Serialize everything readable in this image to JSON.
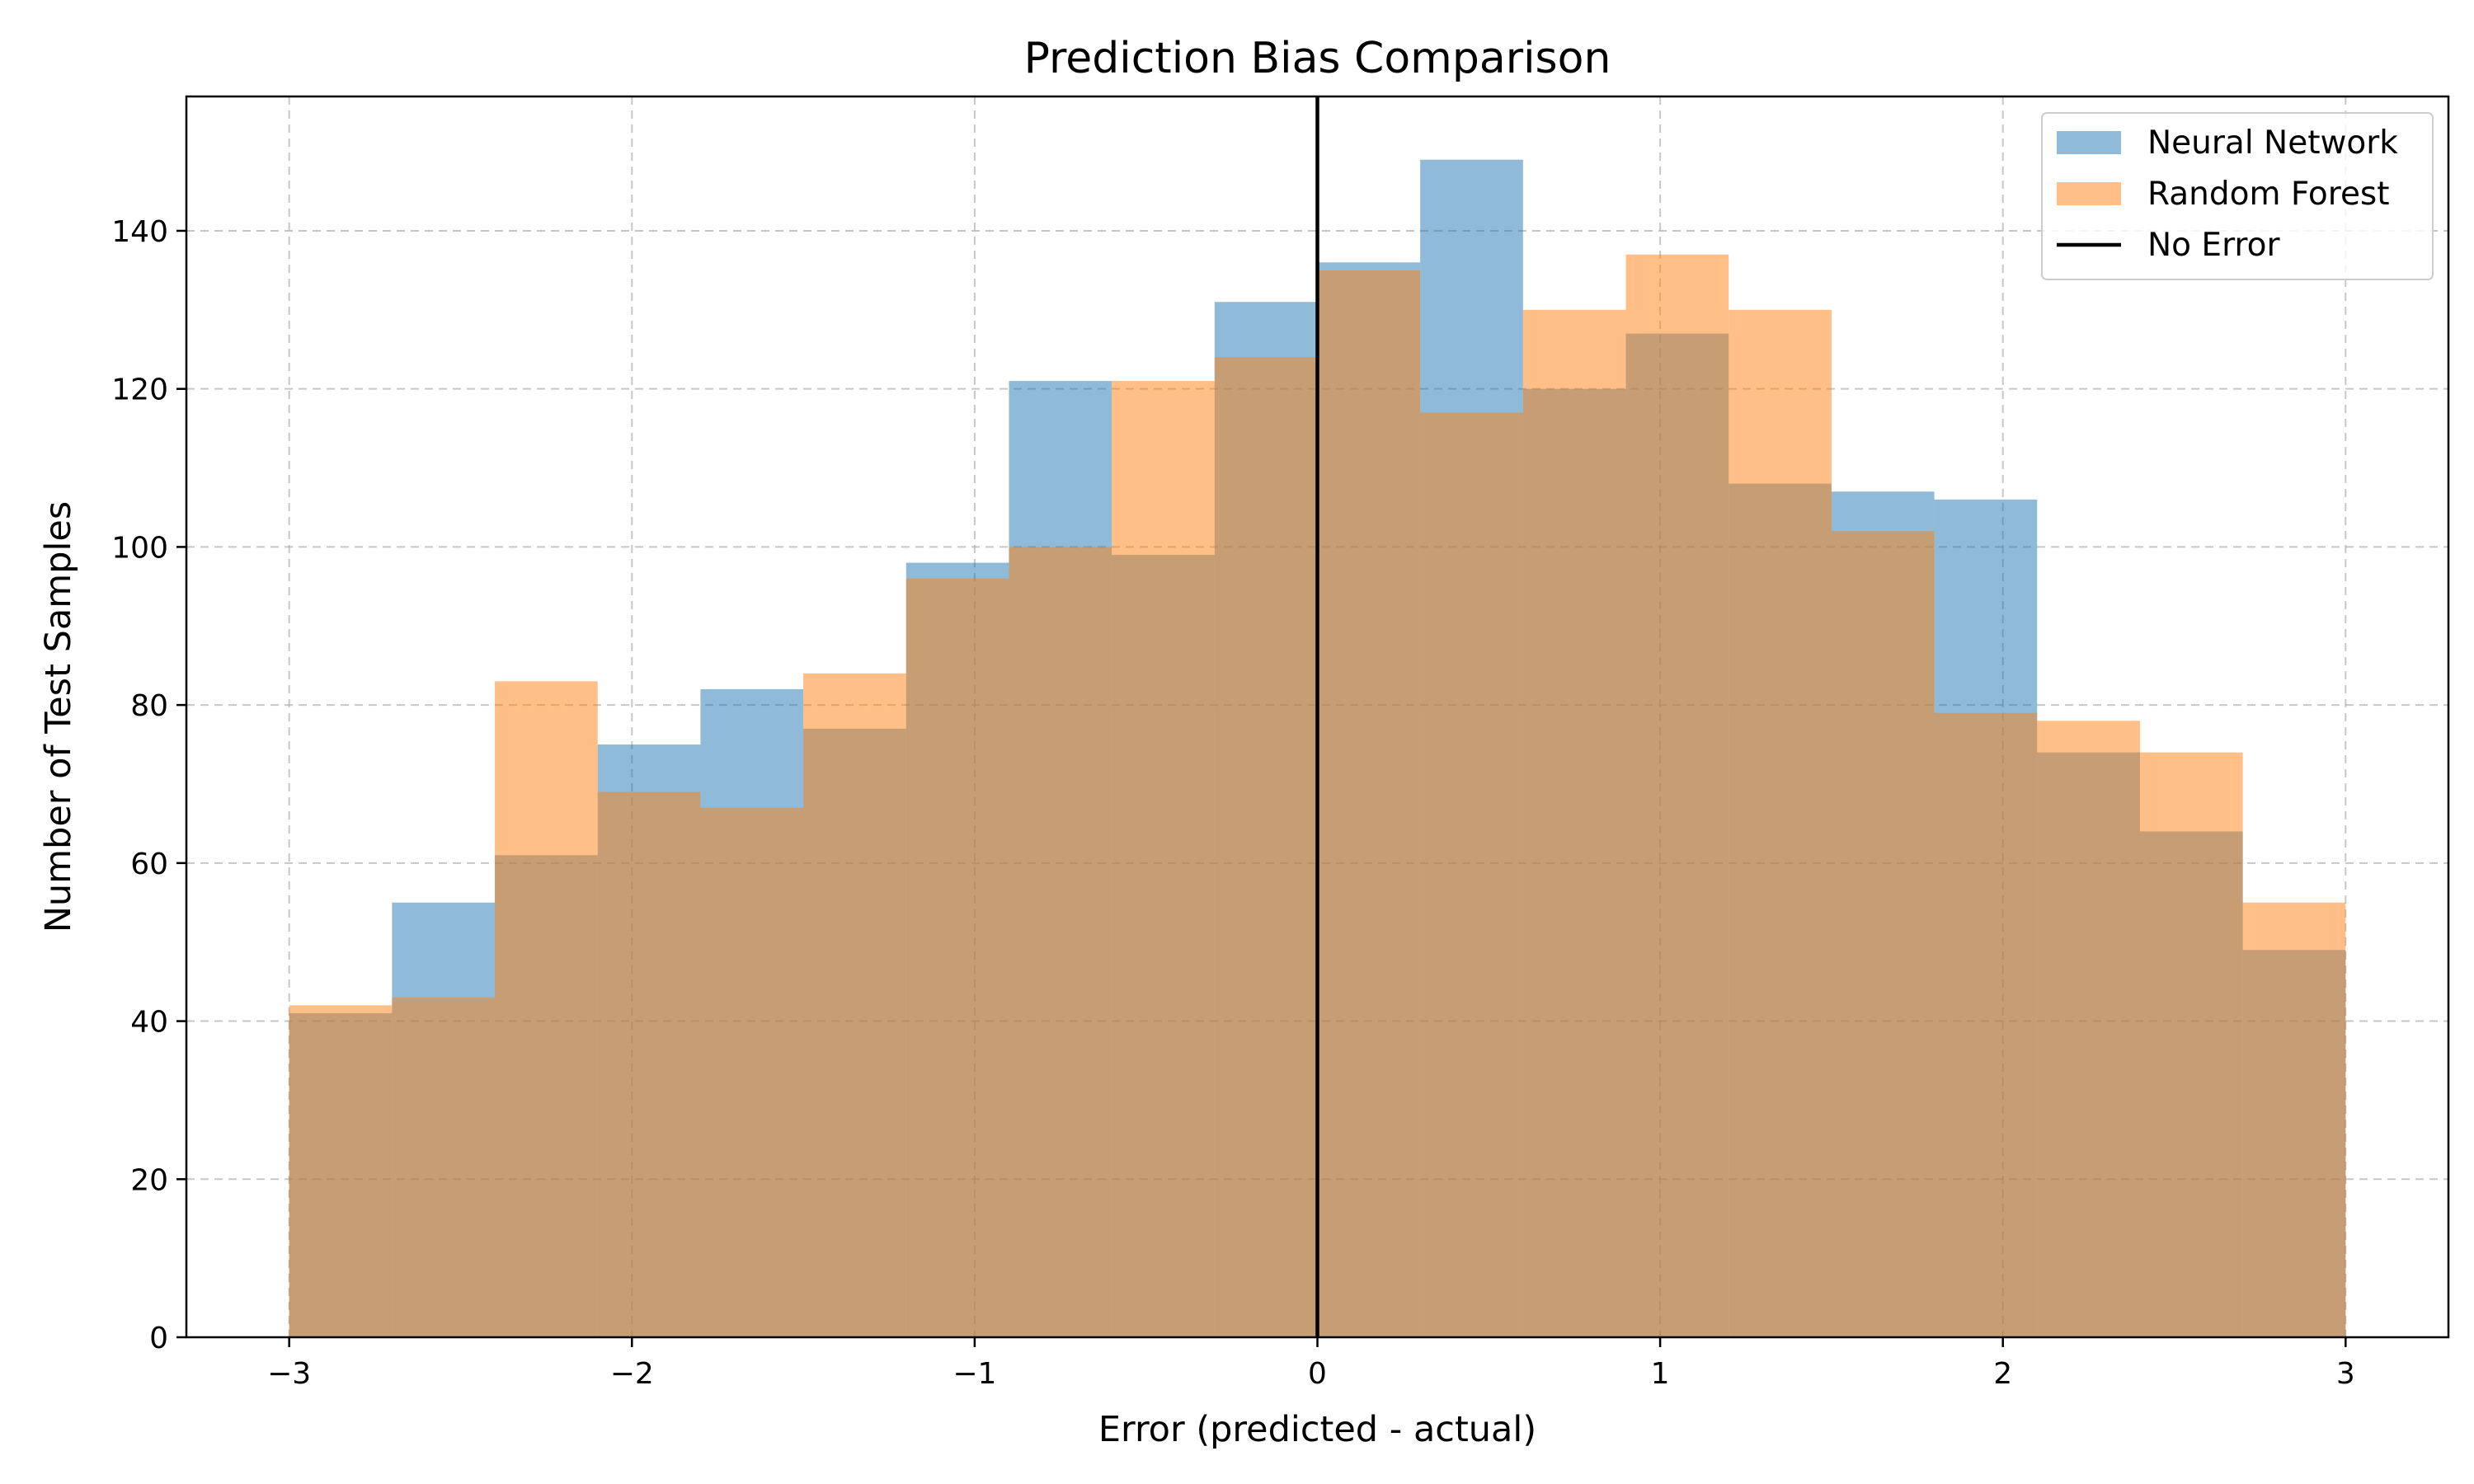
{
  "chart_data": {
    "type": "bar",
    "title": "Prediction Bias Comparison",
    "xlabel": "Error (predicted - actual)",
    "ylabel": "Number of Test Samples",
    "xlim": [
      -3.3,
      3.3
    ],
    "ylim": [
      0,
      157
    ],
    "xticks": [
      -3,
      -2,
      -1,
      0,
      1,
      2,
      3
    ],
    "xtick_labels": [
      "−3",
      "−2",
      "−1",
      "0",
      "1",
      "2",
      "3"
    ],
    "yticks": [
      0,
      20,
      40,
      60,
      80,
      100,
      120,
      140
    ],
    "ytick_labels": [
      "0",
      "20",
      "40",
      "60",
      "80",
      "100",
      "120",
      "140"
    ],
    "grid": true,
    "legend_position": "top-right",
    "bin_edges": [
      -3.0,
      -2.7,
      -2.4,
      -2.1,
      -1.8,
      -1.5,
      -1.2,
      -0.9,
      -0.6,
      -0.3,
      0.0,
      0.3,
      0.6,
      0.9,
      1.2,
      1.5,
      1.8,
      2.1,
      2.4,
      2.7,
      3.0
    ],
    "series": [
      {
        "name": "Neural Network",
        "color": "#1f77b4",
        "opacity": 0.5,
        "values": [
          41,
          55,
          61,
          75,
          82,
          77,
          98,
          121,
          99,
          131,
          136,
          149,
          120,
          127,
          108,
          107,
          106,
          74,
          64,
          49
        ]
      },
      {
        "name": "Random Forest",
        "color": "#ff7f0e",
        "opacity": 0.5,
        "values": [
          42,
          43,
          83,
          69,
          67,
          84,
          96,
          100,
          121,
          124,
          135,
          117,
          130,
          137,
          130,
          102,
          79,
          78,
          74,
          55
        ]
      }
    ],
    "reference_line": {
      "name": "No Error",
      "x": 0,
      "color": "#000000"
    }
  }
}
